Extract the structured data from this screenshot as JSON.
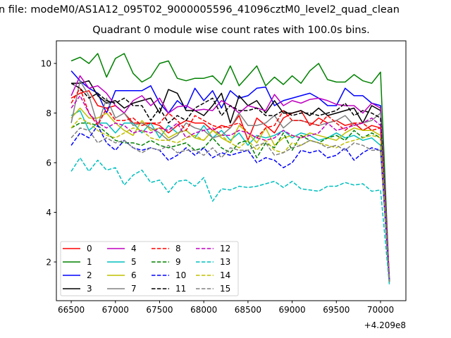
{
  "chart_data": {
    "type": "line",
    "suptitle": "n file: modeM0/AS1A12_095T02_9000005596_41096cztM0_level2_quad_clean",
    "title": "Quadrant 0 module wise count rates with 100.0s bins.",
    "xlabel": "",
    "ylabel": "",
    "x_offset_label": "+4.209e8",
    "xlim": [
      66332,
      70287
    ],
    "ylim": [
      0.44,
      10.91
    ],
    "xticks": [
      66500,
      67000,
      67500,
      68000,
      68500,
      69000,
      69500,
      70000
    ],
    "yticks": [
      2,
      4,
      6,
      8,
      10
    ],
    "x_start": 66500,
    "x_step": 100,
    "legend_position": "lower-left",
    "legend_columns": 4,
    "series": [
      {
        "name": "0",
        "color": "#ff0000",
        "dashed": false,
        "values": [
          8.6,
          8.8,
          8.9,
          8.3,
          8.2,
          8.3,
          8.0,
          7.6,
          7.6,
          7.6,
          7.5,
          7.2,
          7.5,
          7.7,
          7.6,
          7.6,
          7.3,
          7.5,
          7.4,
          7.9,
          6.9,
          7.8,
          7.5,
          7.2,
          7.8,
          8.0,
          8.1,
          7.5,
          7.8,
          7.6,
          7.7,
          7.5,
          7.6,
          7.3,
          7.5,
          7.4,
          1.2
        ]
      },
      {
        "name": "1",
        "color": "#008000",
        "dashed": false,
        "values": [
          10.1,
          10.25,
          10.0,
          10.4,
          9.45,
          10.2,
          10.4,
          9.6,
          9.25,
          9.45,
          10.0,
          10.1,
          9.4,
          9.3,
          9.4,
          9.4,
          9.5,
          9.15,
          9.9,
          9.1,
          9.5,
          9.9,
          9.1,
          9.45,
          9.15,
          9.5,
          9.2,
          9.7,
          10.0,
          9.35,
          9.25,
          9.25,
          9.55,
          9.3,
          9.2,
          9.65,
          1.2
        ]
      },
      {
        "name": "2",
        "color": "#0000ff",
        "dashed": false,
        "values": [
          9.7,
          9.3,
          9.0,
          8.8,
          8.0,
          8.9,
          8.9,
          8.9,
          8.9,
          9.1,
          8.4,
          8.0,
          8.5,
          8.2,
          9.0,
          8.5,
          8.9,
          8.2,
          8.9,
          8.6,
          8.7,
          9.0,
          9.05,
          8.3,
          8.5,
          8.6,
          8.7,
          8.8,
          8.6,
          8.3,
          8.3,
          9.0,
          8.7,
          8.7,
          8.4,
          8.3,
          1.3
        ]
      },
      {
        "name": "3",
        "color": "#000000",
        "dashed": false,
        "values": [
          9.2,
          9.2,
          9.3,
          8.7,
          8.4,
          8.5,
          8.2,
          8.4,
          8.5,
          8.6,
          8.0,
          8.95,
          8.8,
          8.1,
          8.1,
          7.9,
          8.3,
          8.8,
          7.6,
          8.7,
          8.3,
          8.5,
          8.0,
          8.5,
          8.0,
          8.0,
          8.1,
          7.9,
          8.2,
          7.9,
          8.0,
          8.1,
          8.2,
          7.6,
          8.3,
          8.1,
          1.2
        ]
      },
      {
        "name": "4",
        "color": "#bf00bf",
        "dashed": false,
        "values": [
          8.7,
          9.5,
          9.0,
          9.1,
          8.8,
          8.3,
          8.0,
          8.5,
          8.7,
          8.3,
          8.6,
          8.0,
          8.25,
          8.3,
          8.1,
          8.15,
          8.1,
          8.5,
          8.3,
          8.0,
          8.3,
          8.2,
          8.1,
          8.75,
          8.3,
          8.5,
          8.4,
          8.55,
          8.6,
          8.5,
          8.35,
          8.3,
          8.3,
          8.0,
          8.4,
          8.2,
          1.4
        ]
      },
      {
        "name": "5",
        "color": "#00bfbf",
        "dashed": false,
        "values": [
          7.9,
          8.1,
          7.3,
          7.6,
          7.6,
          7.2,
          7.6,
          7.6,
          7.2,
          7.6,
          7.0,
          7.5,
          7.2,
          7.3,
          7.0,
          7.5,
          7.0,
          7.3,
          6.9,
          7.2,
          6.7,
          7.1,
          7.0,
          7.1,
          7.3,
          7.0,
          7.2,
          7.1,
          6.9,
          7.0,
          7.2,
          7.0,
          7.1,
          6.9,
          7.0,
          6.7,
          1.1
        ]
      },
      {
        "name": "6",
        "color": "#bfbf00",
        "dashed": false,
        "values": [
          7.8,
          8.2,
          7.8,
          7.8,
          8.0,
          7.6,
          7.3,
          7.1,
          7.7,
          7.3,
          7.4,
          7.0,
          7.2,
          7.3,
          7.0,
          6.9,
          7.3,
          7.0,
          6.8,
          7.5,
          7.2,
          6.8,
          7.4,
          6.7,
          7.0,
          7.1,
          7.0,
          7.2,
          7.1,
          7.0,
          6.9,
          7.2,
          7.4,
          7.3,
          7.3,
          7.1,
          1.3
        ]
      },
      {
        "name": "7",
        "color": "#808080",
        "dashed": false,
        "values": [
          7.6,
          9.3,
          8.7,
          7.5,
          8.6,
          7.8,
          8.0,
          7.5,
          7.6,
          7.4,
          7.2,
          6.9,
          7.1,
          7.6,
          7.4,
          7.3,
          7.0,
          7.1,
          7.4,
          8.0,
          7.5,
          7.5,
          7.6,
          7.9,
          7.4,
          7.7,
          7.7,
          7.6,
          7.5,
          7.6,
          7.7,
          7.9,
          7.5,
          7.6,
          7.7,
          8.0,
          1.3
        ]
      },
      {
        "name": "8",
        "color": "#ff0000",
        "dashed": true,
        "values": [
          8.4,
          9.0,
          8.0,
          7.5,
          8.2,
          7.7,
          7.7,
          7.8,
          7.5,
          7.6,
          7.6,
          8.0,
          7.7,
          7.3,
          7.9,
          7.7,
          7.5,
          7.4,
          7.5,
          7.6,
          7.2,
          7.0,
          7.4,
          7.5,
          8.1,
          7.7,
          7.7,
          7.6,
          7.5,
          7.9,
          7.6,
          7.3,
          7.6,
          7.6,
          7.3,
          7.4,
          1.3
        ]
      },
      {
        "name": "9",
        "color": "#008000",
        "dashed": true,
        "values": [
          7.4,
          7.6,
          7.6,
          7.5,
          7.2,
          6.9,
          6.8,
          6.8,
          6.7,
          6.9,
          6.7,
          6.6,
          6.7,
          6.8,
          6.5,
          6.6,
          7.0,
          6.6,
          6.4,
          6.8,
          6.9,
          6.2,
          6.8,
          6.6,
          7.2,
          6.5,
          7.1,
          6.9,
          6.8,
          7.0,
          7.1,
          6.9,
          7.3,
          7.0,
          7.2,
          7.0,
          1.2
        ]
      },
      {
        "name": "10",
        "color": "#0000ff",
        "dashed": true,
        "values": [
          6.7,
          7.2,
          7.0,
          7.5,
          6.8,
          6.5,
          6.9,
          6.6,
          6.5,
          6.6,
          6.5,
          6.1,
          6.3,
          6.6,
          6.3,
          6.6,
          6.2,
          6.4,
          6.3,
          6.4,
          6.5,
          6.0,
          6.2,
          6.1,
          5.8,
          6.0,
          6.5,
          6.4,
          6.5,
          6.2,
          6.3,
          6.6,
          6.1,
          6.4,
          6.6,
          6.5,
          1.3
        ]
      },
      {
        "name": "11",
        "color": "#000000",
        "dashed": true,
        "values": [
          9.2,
          9.0,
          8.6,
          8.8,
          8.5,
          8.4,
          8.6,
          8.3,
          8.3,
          7.7,
          8.2,
          7.6,
          7.9,
          7.7,
          8.2,
          8.4,
          8.6,
          7.9,
          8.3,
          8.1,
          8.1,
          8.2,
          7.9,
          7.9,
          8.1,
          7.9,
          8.0,
          8.0,
          7.9,
          8.0,
          8.1,
          8.4,
          7.9,
          8.1,
          8.0,
          7.8,
          1.2
        ]
      },
      {
        "name": "12",
        "color": "#bf00bf",
        "dashed": true,
        "values": [
          8.2,
          8.7,
          8.0,
          7.6,
          7.4,
          7.6,
          7.5,
          7.2,
          7.3,
          7.2,
          7.4,
          7.3,
          7.6,
          7.0,
          7.2,
          7.3,
          7.4,
          7.1,
          7.1,
          7.3,
          7.2,
          7.0,
          6.9,
          7.0,
          7.3,
          7.1,
          7.0,
          7.1,
          7.2,
          7.6,
          7.3,
          7.4,
          7.5,
          7.6,
          7.8,
          7.5,
          1.3
        ]
      },
      {
        "name": "13",
        "color": "#00bfbf",
        "dashed": true,
        "values": [
          5.65,
          6.2,
          5.65,
          6.1,
          5.7,
          5.8,
          5.1,
          5.5,
          5.7,
          5.2,
          5.3,
          4.8,
          5.25,
          5.3,
          5.05,
          5.4,
          4.45,
          4.95,
          4.9,
          5.05,
          5.0,
          5.05,
          5.15,
          5.25,
          5.0,
          5.25,
          4.95,
          4.9,
          4.85,
          5.05,
          5.05,
          5.2,
          5.1,
          5.15,
          4.85,
          4.9,
          1.1
        ]
      },
      {
        "name": "14",
        "color": "#bfbf00",
        "dashed": true,
        "values": [
          7.4,
          7.8,
          7.6,
          7.3,
          7.1,
          7.0,
          7.2,
          7.4,
          7.3,
          7.0,
          6.9,
          6.9,
          6.8,
          7.0,
          7.1,
          6.9,
          7.3,
          7.1,
          6.8,
          6.6,
          6.9,
          6.5,
          6.9,
          6.5,
          6.4,
          6.8,
          6.7,
          6.9,
          6.8,
          6.7,
          6.6,
          6.8,
          6.9,
          7.0,
          7.1,
          7.0,
          1.2
        ]
      },
      {
        "name": "15",
        "color": "#808080",
        "dashed": true,
        "values": [
          7.0,
          7.4,
          7.3,
          6.8,
          7.0,
          6.8,
          6.9,
          6.6,
          6.4,
          6.6,
          6.5,
          6.7,
          6.4,
          6.5,
          6.5,
          6.3,
          6.6,
          6.2,
          6.6,
          6.5,
          6.5,
          6.7,
          6.8,
          6.3,
          6.4,
          6.6,
          6.7,
          6.9,
          6.8,
          6.6,
          6.7,
          6.5,
          6.8,
          6.7,
          6.5,
          6.5,
          1.2
        ]
      }
    ]
  }
}
